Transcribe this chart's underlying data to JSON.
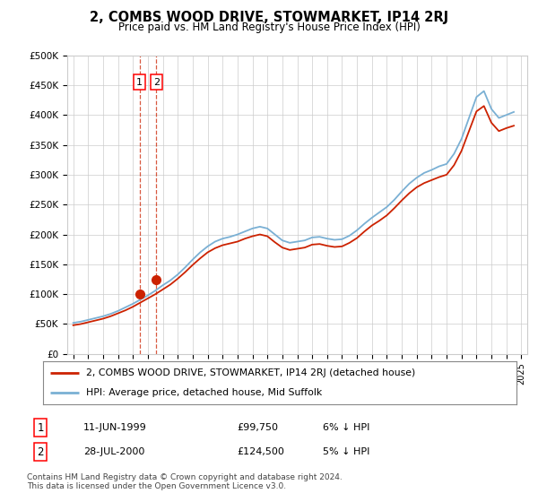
{
  "title": "2, COMBS WOOD DRIVE, STOWMARKET, IP14 2RJ",
  "subtitle": "Price paid vs. HM Land Registry's House Price Index (HPI)",
  "hpi_color": "#7ab0d4",
  "price_color": "#cc2200",
  "dashed_color": "#cc2200",
  "background_color": "#ffffff",
  "grid_color": "#cccccc",
  "ylim": [
    0,
    500000
  ],
  "yticks": [
    0,
    50000,
    100000,
    150000,
    200000,
    250000,
    300000,
    350000,
    400000,
    450000,
    500000
  ],
  "ytick_labels": [
    "£0",
    "£50K",
    "£100K",
    "£150K",
    "£200K",
    "£250K",
    "£300K",
    "£350K",
    "£400K",
    "£450K",
    "£500K"
  ],
  "xlabel_years": [
    1995,
    1996,
    1997,
    1998,
    1999,
    2000,
    2001,
    2002,
    2003,
    2004,
    2005,
    2006,
    2007,
    2008,
    2009,
    2010,
    2011,
    2012,
    2013,
    2014,
    2015,
    2016,
    2017,
    2018,
    2019,
    2020,
    2021,
    2022,
    2023,
    2024,
    2025
  ],
  "sale1_year": 1999.44,
  "sale1_price": 99750,
  "sale1_label": "1",
  "sale2_year": 2000.57,
  "sale2_price": 124500,
  "sale2_label": "2",
  "legend_line1": "2, COMBS WOOD DRIVE, STOWMARKET, IP14 2RJ (detached house)",
  "legend_line2": "HPI: Average price, detached house, Mid Suffolk",
  "table_row1": [
    "1",
    "11-JUN-1999",
    "£99,750",
    "6% ↓ HPI"
  ],
  "table_row2": [
    "2",
    "28-JUL-2000",
    "£124,500",
    "5% ↓ HPI"
  ],
  "footer": "Contains HM Land Registry data © Crown copyright and database right 2024.\nThis data is licensed under the Open Government Licence v3.0.",
  "hpi_years": [
    1995.0,
    1995.5,
    1996.0,
    1996.5,
    1997.0,
    1997.5,
    1998.0,
    1998.5,
    1999.0,
    1999.5,
    2000.0,
    2000.5,
    2001.0,
    2001.5,
    2002.0,
    2002.5,
    2003.0,
    2003.5,
    2004.0,
    2004.5,
    2005.0,
    2005.5,
    2006.0,
    2006.5,
    2007.0,
    2007.5,
    2008.0,
    2008.5,
    2009.0,
    2009.5,
    2010.0,
    2010.5,
    2011.0,
    2011.5,
    2012.0,
    2012.5,
    2013.0,
    2013.5,
    2014.0,
    2014.5,
    2015.0,
    2015.5,
    2016.0,
    2016.5,
    2017.0,
    2017.5,
    2018.0,
    2018.5,
    2019.0,
    2019.5,
    2020.0,
    2020.5,
    2021.0,
    2021.5,
    2022.0,
    2022.5,
    2023.0,
    2023.5,
    2024.0,
    2024.5
  ],
  "hpi_values": [
    52000,
    54000,
    57000,
    60000,
    63000,
    67000,
    72000,
    78000,
    84000,
    91000,
    98000,
    106000,
    115000,
    123000,
    133000,
    145000,
    158000,
    170000,
    180000,
    188000,
    193000,
    196000,
    200000,
    205000,
    210000,
    213000,
    210000,
    200000,
    190000,
    186000,
    188000,
    190000,
    195000,
    196000,
    193000,
    191000,
    192000,
    198000,
    207000,
    218000,
    228000,
    237000,
    246000,
    258000,
    272000,
    285000,
    295000,
    303000,
    308000,
    314000,
    318000,
    335000,
    360000,
    395000,
    430000,
    440000,
    410000,
    395000,
    400000,
    405000
  ],
  "price_years": [
    1995.0,
    1995.5,
    1996.0,
    1996.5,
    1997.0,
    1997.5,
    1998.0,
    1998.5,
    1999.0,
    1999.5,
    2000.0,
    2000.5,
    2001.0,
    2001.5,
    2002.0,
    2002.5,
    2003.0,
    2003.5,
    2004.0,
    2004.5,
    2005.0,
    2005.5,
    2006.0,
    2006.5,
    2007.0,
    2007.5,
    2008.0,
    2008.5,
    2009.0,
    2009.5,
    2010.0,
    2010.5,
    2011.0,
    2011.5,
    2012.0,
    2012.5,
    2013.0,
    2013.5,
    2014.0,
    2014.5,
    2015.0,
    2015.5,
    2016.0,
    2016.5,
    2017.0,
    2017.5,
    2018.0,
    2018.5,
    2019.0,
    2019.5,
    2020.0,
    2020.5,
    2021.0,
    2021.5,
    2022.0,
    2022.5,
    2023.0,
    2023.5,
    2024.0,
    2024.5
  ],
  "price_values": [
    48000,
    50000,
    53000,
    56000,
    59000,
    63000,
    68000,
    73000,
    79000,
    86000,
    93000,
    100000,
    108000,
    116000,
    126000,
    137000,
    149000,
    160000,
    170000,
    177000,
    182000,
    185000,
    188000,
    193000,
    197000,
    200000,
    197000,
    187000,
    178000,
    174000,
    176000,
    178000,
    183000,
    184000,
    181000,
    179000,
    180000,
    186000,
    194000,
    205000,
    215000,
    223000,
    232000,
    244000,
    257000,
    269000,
    279000,
    286000,
    291000,
    296000,
    300000,
    316000,
    340000,
    373000,
    406000,
    415000,
    387000,
    373000,
    378000,
    382000
  ]
}
